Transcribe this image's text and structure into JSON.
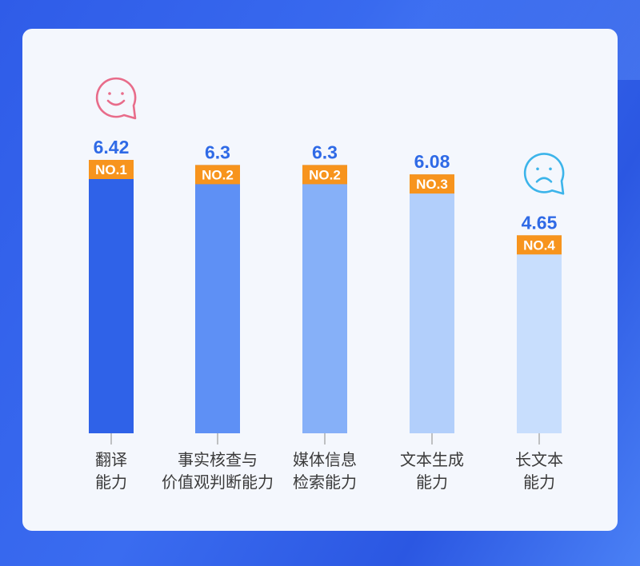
{
  "chart_data": {
    "type": "bar",
    "categories": [
      [
        "翻译",
        "能力"
      ],
      [
        "事实核查与",
        "价值观判断能力"
      ],
      [
        "媒体信息",
        "检索能力"
      ],
      [
        "文本生成",
        "能力"
      ],
      [
        "长文本",
        "能力"
      ]
    ],
    "values": [
      6.42,
      6.3,
      6.3,
      6.08,
      4.65
    ],
    "value_labels": [
      "6.42",
      "6.3",
      "6.3",
      "6.08",
      "4.65"
    ],
    "ranks": [
      "NO.1",
      "NO.2",
      "NO.2",
      "NO.3",
      "NO.4"
    ],
    "bar_colors": [
      "#2f62e8",
      "#5e90f5",
      "#86b0f8",
      "#b2cffb",
      "#c8defd"
    ],
    "rank_color": "#f7941d",
    "ylim": [
      0,
      6.42
    ],
    "grid": false,
    "icons": [
      {
        "category_index": 0,
        "name": "smile-face-icon",
        "color": "#e86c8a"
      },
      {
        "category_index": 4,
        "name": "sad-face-icon",
        "color": "#3cb4ea"
      }
    ]
  }
}
